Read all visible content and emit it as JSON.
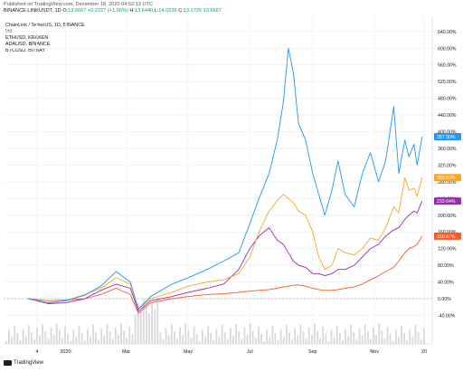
{
  "header": {
    "published": "Published on TradingView.com, December 18, 2020 04:52:13 UTC",
    "symbol": "BINANCE:LINKUSDT, 1D",
    "o_label": "O:",
    "o": "13.6667",
    "delta": "+0.2227 (+1.66%)",
    "h_label": "H:",
    "h": "13.6440",
    "l_label": "L:",
    "l": "14.0235",
    "c_label": "C:",
    "c": "13.1725",
    "tail": "13.6667"
  },
  "legend": {
    "title": "ChainLink / TetherUS, 1D, BINANCE",
    "vol": "Vol",
    "items": [
      "ETHUSD, KRAKEN",
      "ADAUSD, BINANCE",
      "BTCUSD, BITBAY"
    ]
  },
  "colors": {
    "link": "#2196f3",
    "eth": "#f5a623",
    "ada": "#9c27b0",
    "btc": "#ff5722",
    "volume": "#d9d9d9",
    "grid": "#f0f3fa",
    "axis_text": "#131722"
  },
  "branding": {
    "logo_text": "TradingView",
    "logo_icon": "tradingview-logo-icon"
  },
  "chart_data": {
    "type": "line",
    "scale": "percent",
    "grid": true,
    "legend_position": "top-left",
    "x_ticks": [
      "4",
      "2020",
      "Mar",
      "May",
      "Jul",
      "Sep",
      "Nov",
      "20"
    ],
    "y_ticks": [
      -40,
      0,
      40,
      80,
      120,
      160,
      200,
      240,
      280,
      320,
      360,
      400,
      440,
      480,
      520,
      560,
      600,
      640
    ],
    "y_tick_labels": [
      "-40.00%",
      "0.00%",
      "40.00%",
      "80.00%",
      "120.00%",
      "160.00%",
      "200.00%",
      "240.00%",
      "280.00%",
      "320.00%",
      "360.00%",
      "400.00%",
      "440.00%",
      "480.00%",
      "520.00%",
      "560.00%",
      "600.00%",
      "640.00%"
    ],
    "ylim": [
      -60,
      660
    ],
    "x": [
      "2019-11-25",
      "2019-12-15",
      "2020-01-01",
      "2020-01-20",
      "2020-02-05",
      "2020-02-20",
      "2020-03-05",
      "2020-03-13",
      "2020-03-25",
      "2020-04-15",
      "2020-05-01",
      "2020-05-20",
      "2020-06-05",
      "2020-06-20",
      "2020-07-01",
      "2020-07-10",
      "2020-07-20",
      "2020-07-28",
      "2020-08-03",
      "2020-08-08",
      "2020-08-13",
      "2020-08-18",
      "2020-08-25",
      "2020-09-01",
      "2020-09-07",
      "2020-09-13",
      "2020-09-20",
      "2020-09-26",
      "2020-10-03",
      "2020-10-12",
      "2020-10-20",
      "2020-10-28",
      "2020-11-05",
      "2020-11-12",
      "2020-11-20",
      "2020-11-25",
      "2020-12-01",
      "2020-12-05",
      "2020-12-10",
      "2020-12-13",
      "2020-12-18"
    ],
    "series": [
      {
        "name": "LINKUSDT",
        "color": "#2196f3",
        "last_label": "387.90%",
        "values": [
          0,
          -10,
          -5,
          8,
          30,
          65,
          40,
          -25,
          5,
          35,
          50,
          70,
          90,
          110,
          180,
          240,
          300,
          380,
          470,
          600,
          540,
          420,
          380,
          300,
          250,
          200,
          260,
          330,
          250,
          220,
          300,
          350,
          280,
          330,
          460,
          300,
          380,
          340,
          370,
          320,
          388
        ]
      },
      {
        "name": "ETHUSD",
        "color": "#f5a623",
        "last_label": "289.52%",
        "values": [
          0,
          -10,
          -5,
          10,
          25,
          50,
          35,
          -25,
          0,
          15,
          30,
          40,
          45,
          60,
          100,
          160,
          210,
          235,
          250,
          240,
          230,
          210,
          200,
          160,
          100,
          70,
          80,
          120,
          110,
          105,
          120,
          145,
          140,
          170,
          220,
          205,
          290,
          260,
          265,
          245,
          290
        ]
      },
      {
        "name": "ADAUSD",
        "color": "#9c27b0",
        "last_label": "233.64%",
        "values": [
          0,
          -12,
          -10,
          0,
          20,
          35,
          25,
          -30,
          -5,
          5,
          15,
          25,
          35,
          70,
          120,
          150,
          170,
          140,
          130,
          110,
          90,
          80,
          75,
          60,
          60,
          55,
          60,
          70,
          70,
          80,
          100,
          120,
          130,
          150,
          165,
          170,
          190,
          200,
          210,
          205,
          234
        ]
      },
      {
        "name": "BTCUSD",
        "color": "#ff5722",
        "last_label": "150.47%",
        "values": [
          0,
          -5,
          -3,
          0,
          10,
          25,
          10,
          -35,
          -10,
          0,
          5,
          10,
          12,
          15,
          18,
          20,
          22,
          25,
          28,
          30,
          32,
          33,
          30,
          25,
          22,
          20,
          20,
          22,
          25,
          28,
          35,
          45,
          55,
          65,
          75,
          90,
          110,
          120,
          125,
          130,
          150
        ]
      }
    ]
  }
}
